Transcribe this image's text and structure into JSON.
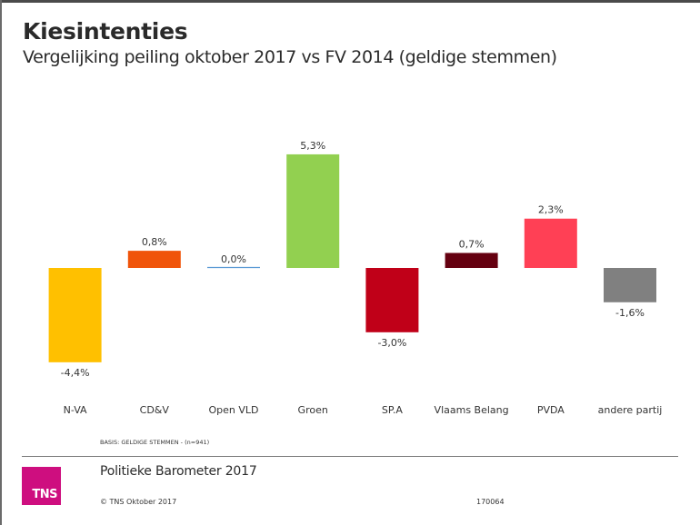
{
  "header": {
    "title": "Kiesintenties",
    "subtitle": "Vergelijking peiling oktober 2017 vs FV 2014 (geldige stemmen)"
  },
  "chart_data": {
    "type": "bar",
    "title": "Kiesintenties",
    "subtitle": "Vergelijking peiling oktober 2017 vs FV 2014 (geldige stemmen)",
    "xlabel": "",
    "ylabel": "",
    "unit": "%",
    "ylim": [
      -4.4,
      5.3
    ],
    "grid": false,
    "legend": "none",
    "categories": [
      "N-VA",
      "CD&V",
      "Open VLD",
      "Groen",
      "SP.A",
      "Vlaams Belang",
      "PVDA",
      "andere partij"
    ],
    "values": [
      -4.4,
      0.8,
      0.0,
      5.3,
      -3.0,
      0.7,
      2.3,
      -1.6
    ],
    "data_labels": [
      "-4,4%",
      "0,8%",
      "0,0%",
      "5,3%",
      "-3,0%",
      "0,7%",
      "2,3%",
      "-1,6%"
    ],
    "colors": [
      "#FFC000",
      "#F0540A",
      "#5B9BD5",
      "#92D050",
      "#C00018",
      "#650010",
      "#FF4055",
      "#808080"
    ]
  },
  "footnote": {
    "basis": "BASIS: GELDIGE STEMMEN -  (n=941)"
  },
  "footer": {
    "logo_text": "TNS",
    "logo_color": "#CE0E7F",
    "title": "Politieke Barometer  2017",
    "copyright": "© TNS Oktober 2017",
    "doc_id": "170064"
  }
}
